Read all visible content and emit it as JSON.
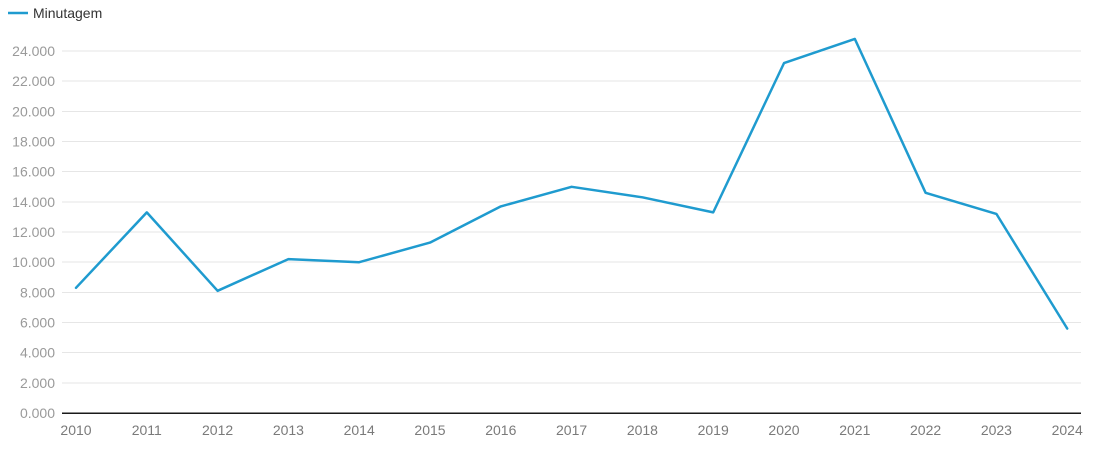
{
  "chart_data": {
    "type": "line",
    "title": "",
    "xlabel": "",
    "ylabel": "",
    "x": [
      "2010",
      "2011",
      "2012",
      "2013",
      "2014",
      "2015",
      "2016",
      "2017",
      "2018",
      "2019",
      "2020",
      "2021",
      "2022",
      "2023",
      "2024"
    ],
    "series": [
      {
        "name": "Minutagem",
        "color": "#1f9bcf",
        "values": [
          8300,
          13300,
          8100,
          10200,
          10000,
          11300,
          13700,
          15000,
          14300,
          13300,
          23200,
          24800,
          14600,
          13200,
          5600
        ]
      }
    ],
    "ylim": [
      0,
      24000
    ],
    "yticks": [
      0,
      2000,
      4000,
      6000,
      8000,
      10000,
      12000,
      14000,
      16000,
      18000,
      20000,
      22000,
      24000
    ],
    "ytick_labels": [
      "0.000",
      "2.000",
      "4.000",
      "6.000",
      "8.000",
      "10.000",
      "12.000",
      "14.000",
      "16.000",
      "18.000",
      "20.000",
      "22.000",
      "24.000"
    ],
    "grid": true,
    "legend_position": "top-left"
  }
}
